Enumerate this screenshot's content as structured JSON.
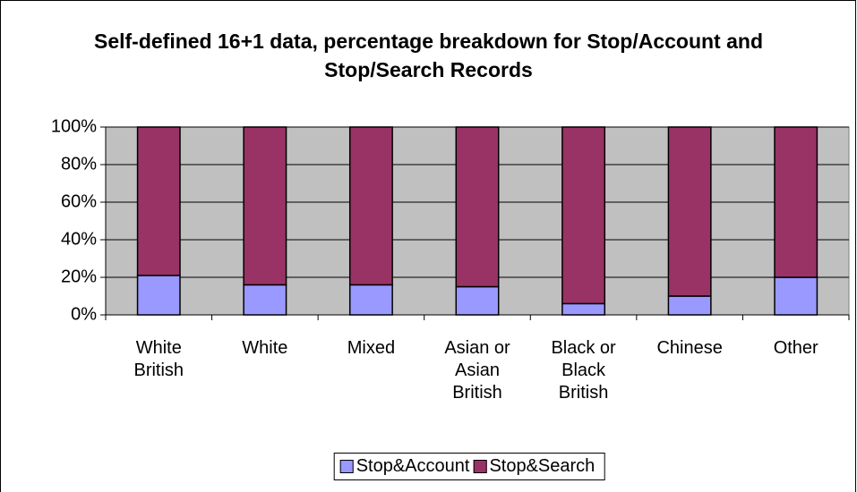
{
  "chart_data": {
    "type": "stacked_bar",
    "title": "Self-defined 16+1 data, percentage breakdown for Stop/Account and Stop/Search Records",
    "categories": [
      "White British",
      "White",
      "Mixed",
      "Asian or Asian British",
      "Black or Black British",
      "Chinese",
      "Other"
    ],
    "series": [
      {
        "name": "Stop&Account",
        "color": "#9999ff",
        "values": [
          21,
          16,
          16,
          15,
          6,
          10,
          20
        ]
      },
      {
        "name": "Stop&Search",
        "color": "#993366",
        "values": [
          79,
          84,
          84,
          85,
          94,
          90,
          80
        ]
      }
    ],
    "ylim": [
      0,
      100
    ],
    "yticks": [
      {
        "value": 0,
        "label": "0%"
      },
      {
        "value": 20,
        "label": "20%"
      },
      {
        "value": 40,
        "label": "40%"
      },
      {
        "value": 60,
        "label": "60%"
      },
      {
        "value": 80,
        "label": "80%"
      },
      {
        "value": 100,
        "label": "100%"
      }
    ],
    "grid": true,
    "legend": "bottom",
    "plot_background": "#c0c0c0"
  }
}
